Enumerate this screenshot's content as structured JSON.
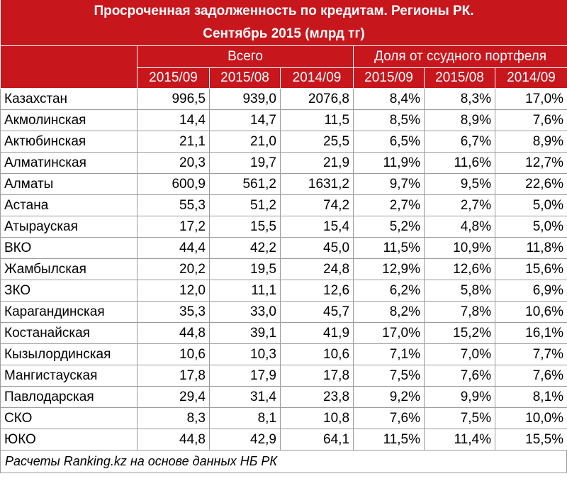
{
  "title": [
    "Просроченная задолженность по кредитам. Регионы РК.",
    "Сентябрь 2015 (млрд тг)"
  ],
  "table": {
    "groups": [
      "Всего",
      "Доля от ссудного портфеля"
    ],
    "columns": [
      "2015/09",
      "2015/08",
      "2014/09",
      "2015/09",
      "2015/08",
      "2014/09"
    ],
    "rows": [
      [
        "Казахстан",
        "996,5",
        "939,0",
        "2076,8",
        "8,4%",
        "8,3%",
        "17,0%"
      ],
      [
        "Акмолинская",
        "14,4",
        "14,7",
        "11,5",
        "8,5%",
        "8,9%",
        "7,6%"
      ],
      [
        "Актюбинская",
        "21,1",
        "21,0",
        "25,5",
        "6,5%",
        "6,7%",
        "8,9%"
      ],
      [
        "Алматинская",
        "20,3",
        "19,7",
        "21,9",
        "11,9%",
        "11,6%",
        "12,7%"
      ],
      [
        "Алматы",
        "600,9",
        "561,2",
        "1631,2",
        "9,7%",
        "9,5%",
        "22,6%"
      ],
      [
        "Астана",
        "55,3",
        "51,2",
        "74,2",
        "2,7%",
        "2,7%",
        "5,0%"
      ],
      [
        "Атырауская",
        "17,2",
        "15,5",
        "15,4",
        "5,2%",
        "4,8%",
        "5,0%"
      ],
      [
        "ВКО",
        "44,4",
        "42,2",
        "45,0",
        "11,5%",
        "10,9%",
        "11,8%"
      ],
      [
        "Жамбылская",
        "20,2",
        "19,5",
        "24,8",
        "12,9%",
        "12,6%",
        "15,6%"
      ],
      [
        "ЗКО",
        "12,0",
        "11,1",
        "12,6",
        "6,2%",
        "5,8%",
        "6,9%"
      ],
      [
        "Карагандинская",
        "35,3",
        "33,0",
        "45,7",
        "8,2%",
        "7,8%",
        "10,6%"
      ],
      [
        "Костанайская",
        "44,8",
        "39,1",
        "41,9",
        "17,0%",
        "15,2%",
        "16,1%"
      ],
      [
        "Кызылординская",
        "10,6",
        "10,3",
        "10,6",
        "7,1%",
        "7,0%",
        "7,7%"
      ],
      [
        "Мангистауская",
        "17,8",
        "17,9",
        "17,8",
        "7,5%",
        "7,6%",
        "7,6%"
      ],
      [
        "Павлодарская",
        "29,4",
        "31,4",
        "23,8",
        "9,2%",
        "9,9%",
        "8,1%"
      ],
      [
        "СКО",
        "8,3",
        "8,1",
        "10,8",
        "7,6%",
        "7,5%",
        "10,0%"
      ],
      [
        "ЮКО",
        "44,8",
        "42,9",
        "64,1",
        "11,5%",
        "11,4%",
        "15,5%"
      ]
    ]
  },
  "footer": "Расчеты Ranking.kz на основе данных НБ РК"
}
